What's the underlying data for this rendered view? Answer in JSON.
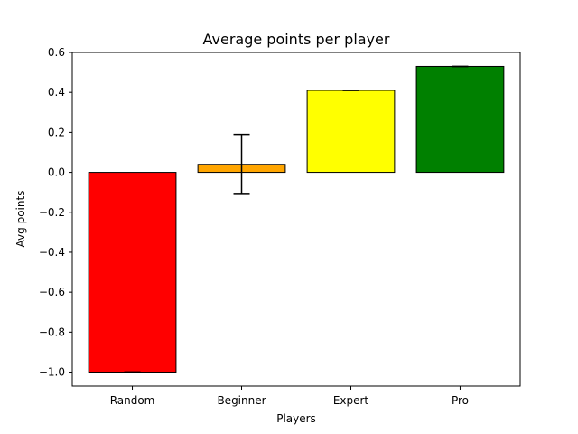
{
  "chart_data": {
    "type": "bar",
    "title": "Average points per player",
    "xlabel": "Players",
    "ylabel": "Avg points",
    "categories": [
      "Random",
      "Beginner",
      "Expert",
      "Pro"
    ],
    "values": [
      -1.0,
      0.04,
      0.41,
      0.53
    ],
    "error_low": [
      -1.0,
      -0.11,
      0.41,
      0.53
    ],
    "error_high": [
      -1.0,
      0.19,
      0.41,
      0.53
    ],
    "colors": [
      "#ff0000",
      "#ffa500",
      "#ffff00",
      "#008000"
    ],
    "edge_color": "#000000",
    "ylim": [
      -1.07,
      0.6
    ],
    "yticks": [
      -1.0,
      -0.8,
      -0.6,
      -0.4,
      -0.2,
      0.0,
      0.2,
      0.4,
      0.6
    ],
    "ytick_labels": [
      "−1.0",
      "−0.8",
      "−0.6",
      "−0.4",
      "−0.2",
      "0.0",
      "0.2",
      "0.4",
      "0.6"
    ],
    "grid": false,
    "legend": false
  }
}
